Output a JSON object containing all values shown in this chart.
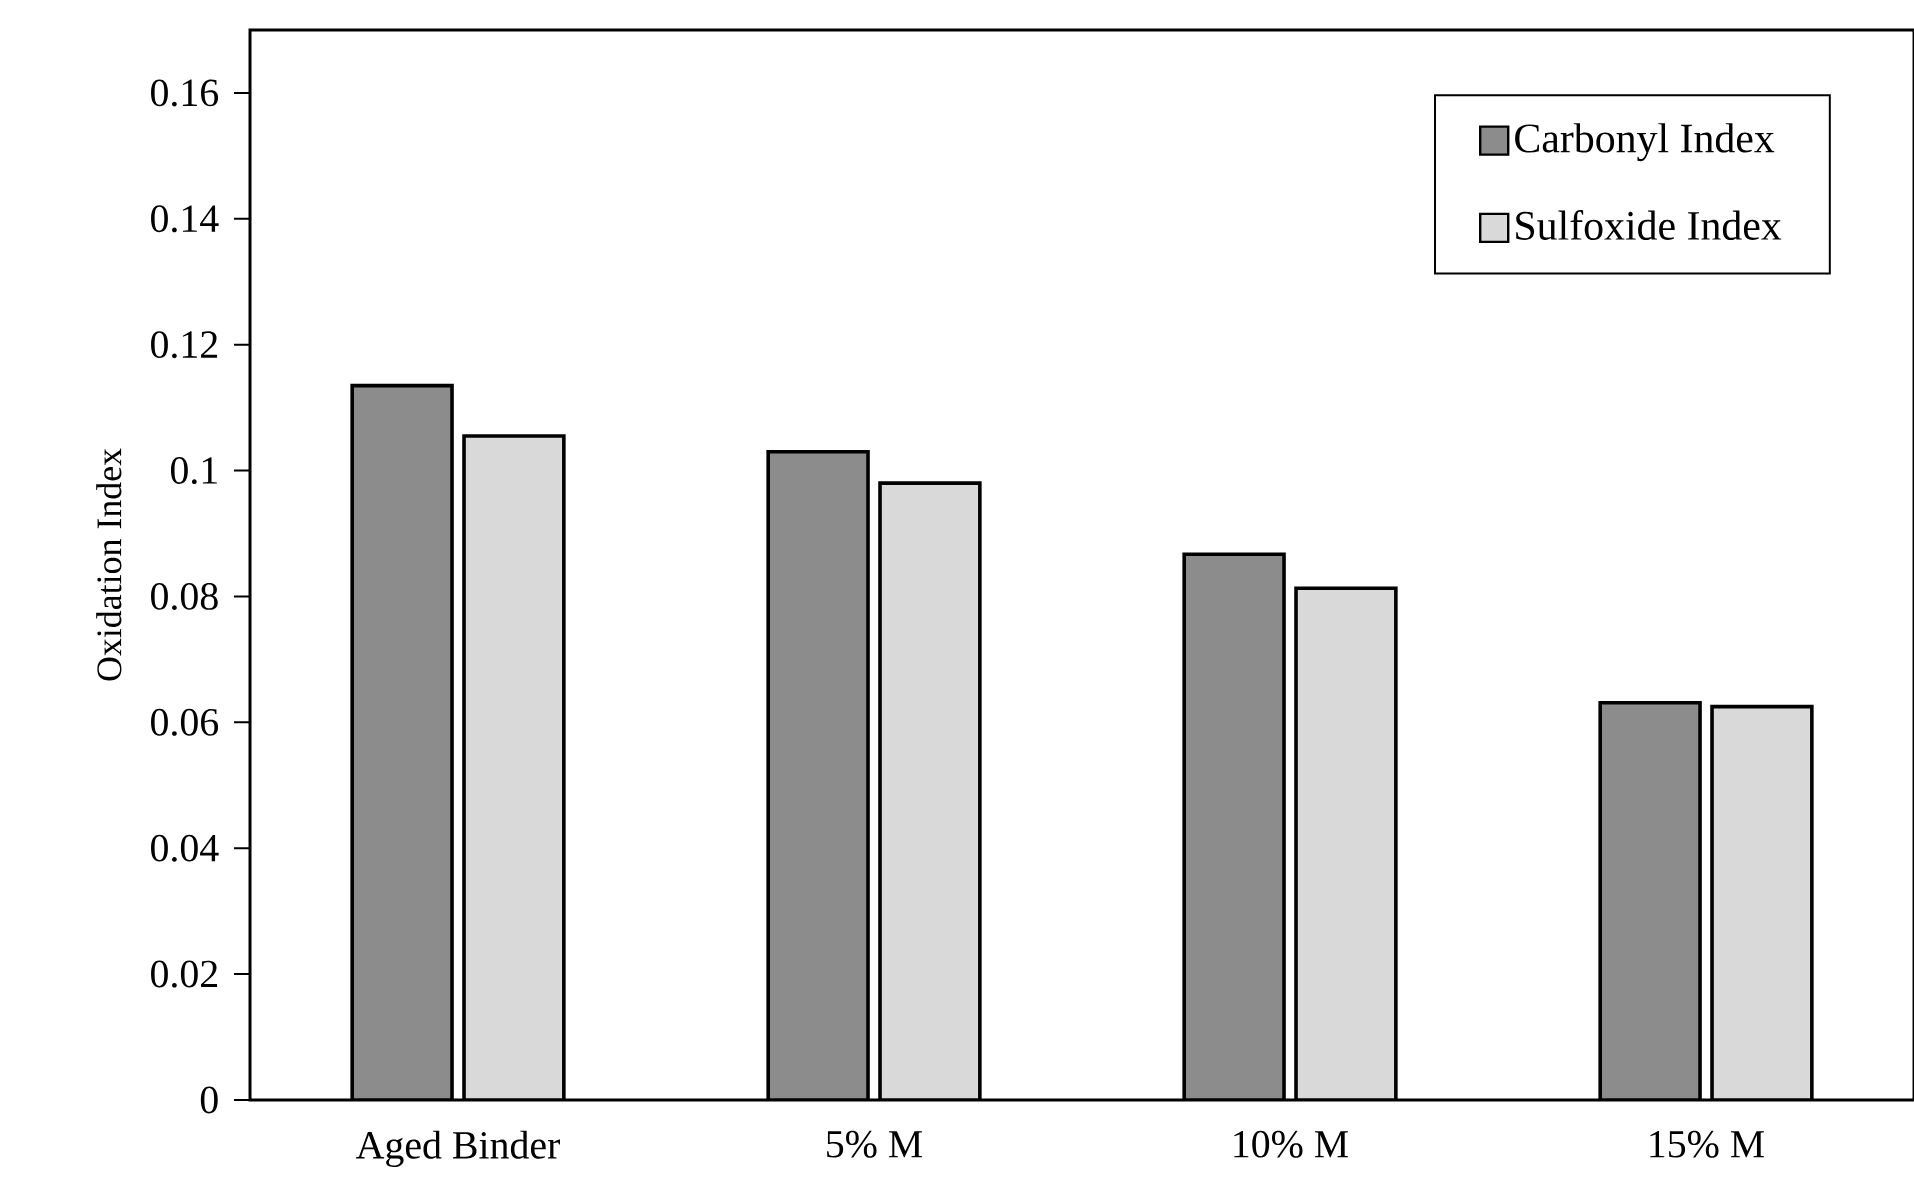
{
  "chart_data": {
    "type": "bar",
    "ylabel": "Oxidation Index",
    "categories": [
      "Aged Binder",
      "5% M",
      "10% M",
      "15% M"
    ],
    "series": [
      {
        "name": "Carbonyl Index",
        "color": "#8c8c8c",
        "values": [
          0.1135,
          0.103,
          0.0867,
          0.0631
        ]
      },
      {
        "name": "Sulfoxide Index",
        "color": "#d9d9d9",
        "values": [
          0.1055,
          0.098,
          0.0813,
          0.0625
        ]
      }
    ],
    "ylim": [
      0,
      0.17
    ],
    "yticks": [
      0,
      0.02,
      0.04,
      0.06,
      0.08,
      0.1,
      0.12,
      0.14,
      0.16
    ],
    "grid": false,
    "legend": "top right"
  }
}
